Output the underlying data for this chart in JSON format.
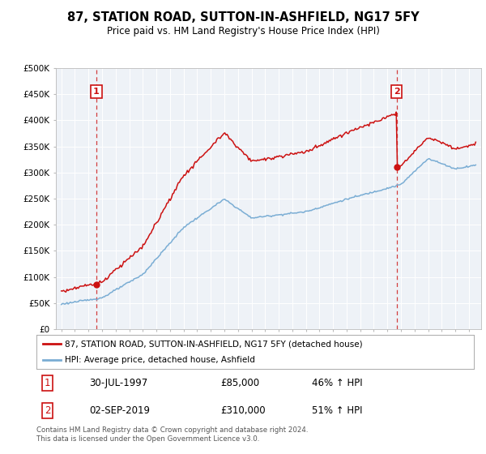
{
  "title": "87, STATION ROAD, SUTTON-IN-ASHFIELD, NG17 5FY",
  "subtitle": "Price paid vs. HM Land Registry's House Price Index (HPI)",
  "legend_line1": "87, STATION ROAD, SUTTON-IN-ASHFIELD, NG17 5FY (detached house)",
  "legend_line2": "HPI: Average price, detached house, Ashfield",
  "transaction1_date": "30-JUL-1997",
  "transaction1_price": 85000,
  "transaction1_label": "46% ↑ HPI",
  "transaction2_date": "02-SEP-2019",
  "transaction2_price": 310000,
  "transaction2_label": "51% ↑ HPI",
  "hpi_color": "#7aadd4",
  "price_color": "#cc1111",
  "plot_bg_color": "#eef2f7",
  "footer": "Contains HM Land Registry data © Crown copyright and database right 2024.\nThis data is licensed under the Open Government Licence v3.0.",
  "ylim": [
    0,
    500000
  ],
  "ytick_labels": [
    "£0",
    "£50K",
    "£100K",
    "£150K",
    "£200K",
    "£250K",
    "£300K",
    "£350K",
    "£400K",
    "£450K",
    "£500K"
  ],
  "t1_year": 1997.58,
  "t2_year": 2019.67
}
